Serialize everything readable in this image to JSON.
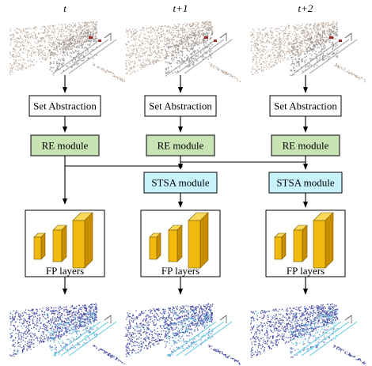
{
  "frames": [
    {
      "time_label": "t",
      "has_stsa": false
    },
    {
      "time_label": "t+1",
      "has_stsa": true
    },
    {
      "time_label": "t+2",
      "has_stsa": true
    }
  ],
  "labels": {
    "set_abstraction": "Set Abstraction",
    "re_module": "RE module",
    "stsa_module": "STSA module",
    "fp_layers": "FP layers"
  },
  "colors": {
    "re_fill": "#c9e4b4",
    "stsa_fill": "#c8f3fb",
    "fp_front": "#f2b90e",
    "fp_side": "#c98d00",
    "fp_top": "#f9d85a",
    "cloud_input": "#b9a69a",
    "cloud_output": "#3a3d9c",
    "highlight": "#5ec7e0",
    "accent_red": "#9b2b2b"
  },
  "icons": {
    "input_cloud": "point-cloud-input-icon",
    "output_cloud": "point-cloud-segmented-icon",
    "fp_blocks": "feature-blocks-icon"
  }
}
